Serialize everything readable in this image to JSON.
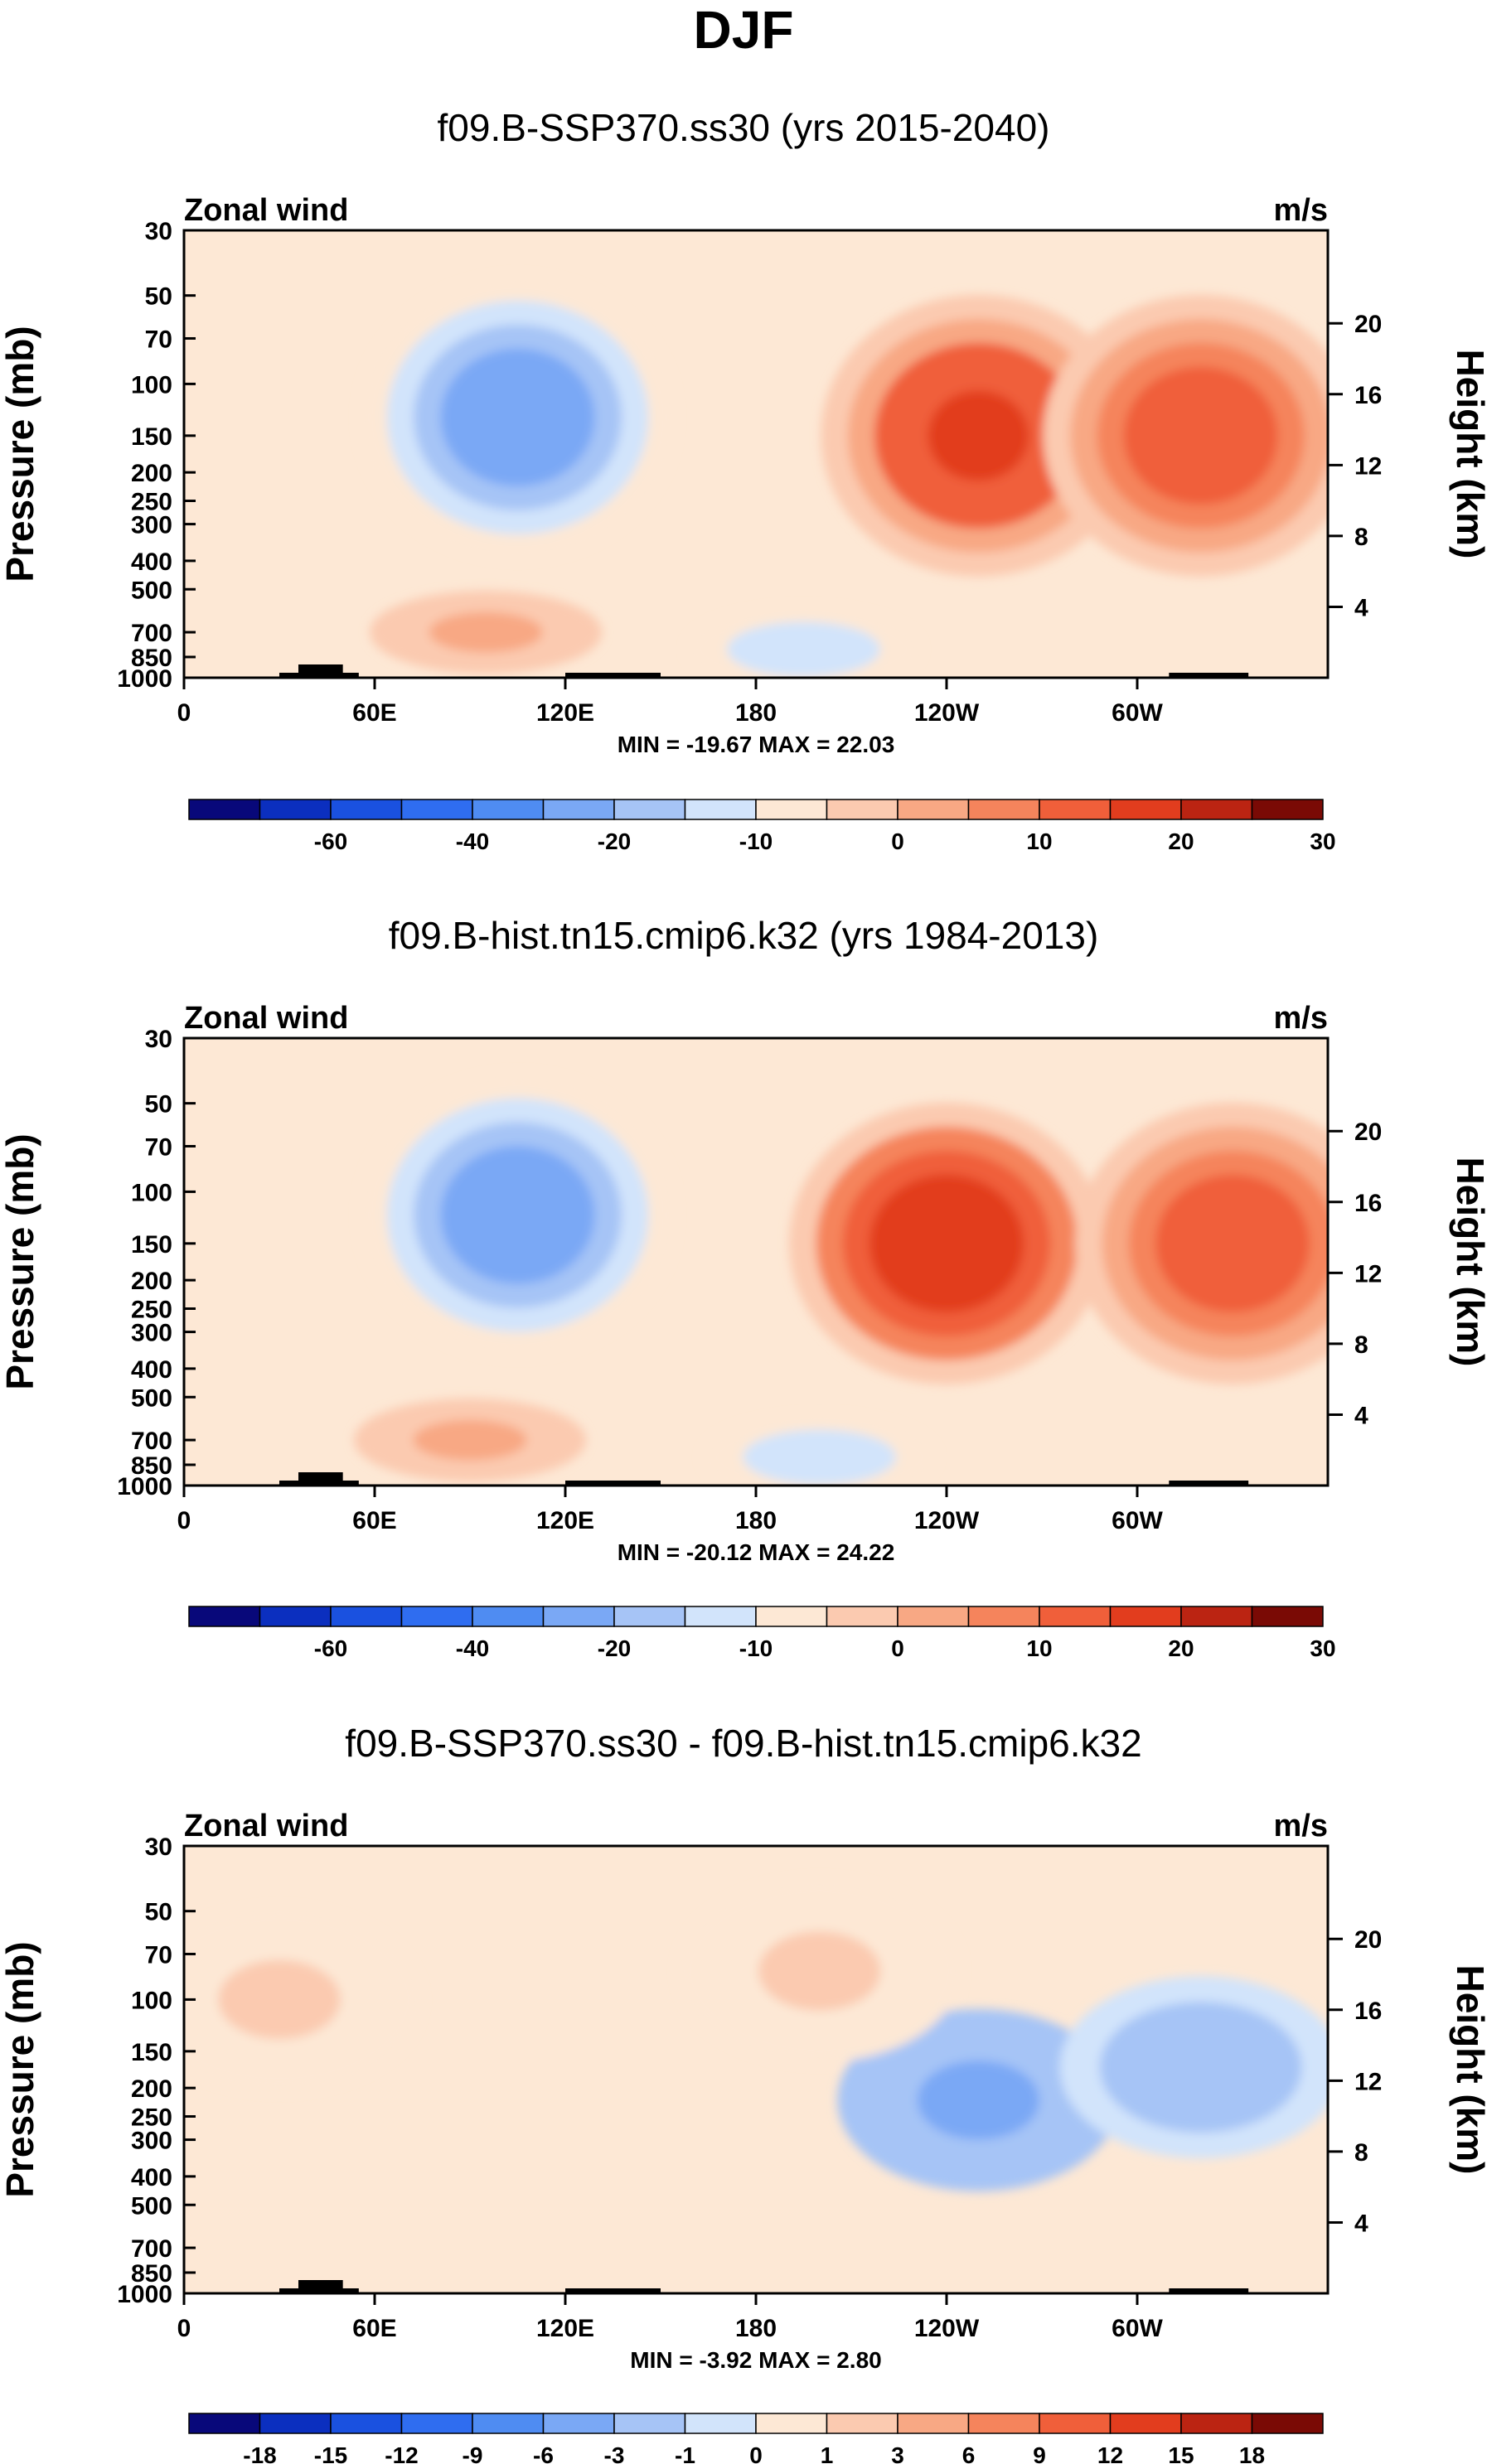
{
  "figure_title": "DJF",
  "colors": {
    "palette_full": [
      "#08087a",
      "#0b2fbf",
      "#1a51e0",
      "#2f6df0",
      "#4f8cf2",
      "#7aa8f5",
      "#a6c4f6",
      "#d2e4fb",
      "#fde8d5",
      "#fbcab0",
      "#f8a884",
      "#f5845c",
      "#f05f3a",
      "#e23d1e",
      "#bb2412",
      "#7a0a05"
    ],
    "land": "#000000"
  },
  "chart_data": [
    {
      "type": "contour",
      "title": "f09.B-SSP370.ss30 (yrs 2015-2040)",
      "left_label": "Zonal wind",
      "right_label": "m/s",
      "ylabel": "Pressure (mb)",
      "ylabel_right": "Height (km)",
      "xticks": [
        "0",
        "60E",
        "120E",
        "180",
        "120W",
        "60W"
      ],
      "yticks": [
        "30",
        "50",
        "70",
        "100",
        "150",
        "200",
        "250",
        "300",
        "400",
        "500",
        "700",
        "850",
        "1000"
      ],
      "yticks_right": [
        "20",
        "16",
        "12",
        "8",
        "4"
      ],
      "x_range_deg": [
        0,
        360
      ],
      "p_range_mb": [
        1000,
        30
      ],
      "stats": "MIN = -19.67  MAX = 22.03",
      "min": -19.67,
      "max": 22.03,
      "colorbar_labels": [
        "-60",
        "-40",
        "-20",
        "-10",
        "0",
        "10",
        "20",
        "30"
      ],
      "features": [
        {
          "lon": 250,
          "p": 150,
          "value": 22
        },
        {
          "lon": 320,
          "p": 150,
          "value": 17
        },
        {
          "lon": 105,
          "p": 130,
          "value": -18
        },
        {
          "lon": 95,
          "p": 700,
          "value": 6
        },
        {
          "lon": 195,
          "p": 800,
          "value": -8
        }
      ]
    },
    {
      "type": "contour",
      "title": "f09.B-hist.tn15.cmip6.k32 (yrs 1984-2013)",
      "left_label": "Zonal wind",
      "right_label": "m/s",
      "ylabel": "Pressure (mb)",
      "ylabel_right": "Height (km)",
      "xticks": [
        "0",
        "60E",
        "120E",
        "180",
        "120W",
        "60W"
      ],
      "yticks": [
        "30",
        "50",
        "70",
        "100",
        "150",
        "200",
        "250",
        "300",
        "400",
        "500",
        "700",
        "850",
        "1000"
      ],
      "yticks_right": [
        "20",
        "16",
        "12",
        "8",
        "4"
      ],
      "x_range_deg": [
        0,
        360
      ],
      "p_range_mb": [
        1000,
        30
      ],
      "stats": "MIN = -20.12  MAX = 24.22",
      "min": -20.12,
      "max": 24.22,
      "colorbar_labels": [
        "-60",
        "-40",
        "-20",
        "-10",
        "0",
        "10",
        "20",
        "30"
      ],
      "features": [
        {
          "lon": 240,
          "p": 150,
          "value": 24
        },
        {
          "lon": 330,
          "p": 150,
          "value": 18
        },
        {
          "lon": 105,
          "p": 120,
          "value": -20
        },
        {
          "lon": 90,
          "p": 700,
          "value": 6
        },
        {
          "lon": 200,
          "p": 800,
          "value": -8
        }
      ]
    },
    {
      "type": "contour",
      "title": "f09.B-SSP370.ss30 - f09.B-hist.tn15.cmip6.k32",
      "left_label": "Zonal wind",
      "right_label": "m/s",
      "ylabel": "Pressure (mb)",
      "ylabel_right": "Height (km)",
      "xticks": [
        "0",
        "60E",
        "120E",
        "180",
        "120W",
        "60W"
      ],
      "yticks": [
        "30",
        "50",
        "70",
        "100",
        "150",
        "200",
        "250",
        "300",
        "400",
        "500",
        "700",
        "850",
        "1000"
      ],
      "yticks_right": [
        "20",
        "16",
        "12",
        "8",
        "4"
      ],
      "x_range_deg": [
        0,
        360
      ],
      "p_range_mb": [
        1000,
        30
      ],
      "stats": "MIN = -3.92  MAX =  2.80",
      "min": -3.92,
      "max": 2.8,
      "colorbar_labels": [
        "-18",
        "-15",
        "-12",
        "-9",
        "-6",
        "-3",
        "-1",
        "0",
        "1",
        "3",
        "6",
        "9",
        "12",
        "15",
        "18"
      ],
      "features": [
        {
          "lon": 250,
          "p": 220,
          "value": -3.9
        },
        {
          "lon": 320,
          "p": 170,
          "value": -2.5
        },
        {
          "lon": 30,
          "p": 100,
          "value": 1.5
        },
        {
          "lon": 200,
          "p": 80,
          "value": 1.2
        }
      ]
    }
  ]
}
